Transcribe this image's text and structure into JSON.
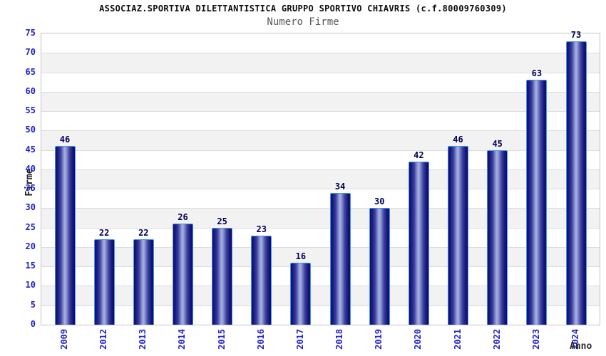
{
  "header": {
    "title": "ASSOCIAZ.SPORTIVA DILETTANTISTICA GRUPPO SPORTIVO CHIAVRIS (c.f.80009760309)",
    "subtitle": "Numero Firme"
  },
  "chart_data": {
    "type": "bar",
    "title": "ASSOCIAZ.SPORTIVA DILETTANTISTICA GRUPPO SPORTIVO CHIAVRIS (c.f.80009760309)",
    "subtitle": "Numero Firme",
    "xlabel": "Anno",
    "ylabel": "Firme",
    "categories": [
      "2009",
      "2012",
      "2013",
      "2014",
      "2015",
      "2016",
      "2017",
      "2018",
      "2019",
      "2020",
      "2021",
      "2022",
      "2023",
      "2024"
    ],
    "values": [
      46,
      22,
      22,
      26,
      25,
      23,
      16,
      34,
      30,
      42,
      46,
      45,
      63,
      73
    ],
    "ylim": [
      0,
      75
    ],
    "ytick_step": 5,
    "yticks": [
      0,
      5,
      10,
      15,
      20,
      25,
      30,
      35,
      40,
      45,
      50,
      55,
      60,
      65,
      70,
      75
    ],
    "grid": true,
    "legend": "none",
    "bands_alternating": true,
    "colors": {
      "title_text": "#0d0d0d",
      "subtitle_text": "#585858",
      "tick_text": "#2323cc",
      "value_text": "#000055",
      "axis_title_text": "#1c1c1c",
      "x_axis_title_text": "#2b2b2b",
      "bar_dark": "#0f0f6e",
      "bar_mid": "#3a3f9e",
      "bar_light": "#a8b1e1",
      "bar_border": "#4394ee",
      "band_gray": "#f2f2f2",
      "gridline": "#dcdcdc",
      "plot_border": "#c4c4c4",
      "background": "#ffffff"
    }
  }
}
